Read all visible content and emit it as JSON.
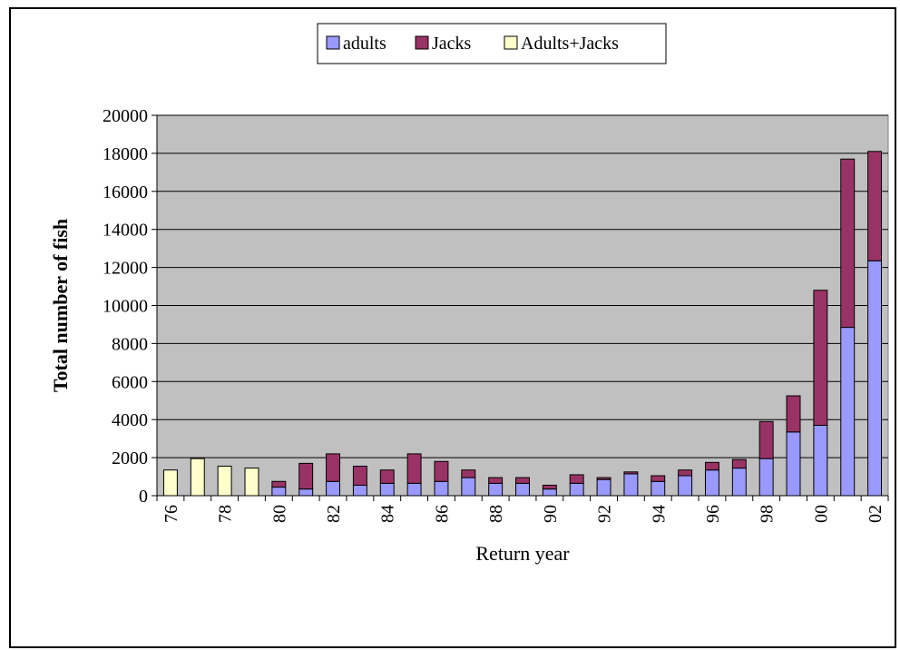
{
  "chart_data": {
    "type": "bar",
    "stacked": true,
    "xlabel": "Return year",
    "ylabel": "Total number of fish",
    "ylim": [
      0,
      20000
    ],
    "yticks": [
      0,
      2000,
      4000,
      6000,
      8000,
      10000,
      12000,
      14000,
      16000,
      18000,
      20000
    ],
    "legend_position": "top-center",
    "grid": true,
    "background_color": "#c0c0c0",
    "categories": [
      "76",
      "77",
      "78",
      "79",
      "80",
      "81",
      "82",
      "83",
      "84",
      "85",
      "86",
      "87",
      "88",
      "89",
      "90",
      "91",
      "92",
      "93",
      "94",
      "95",
      "96",
      "97",
      "98",
      "99",
      "00",
      "01",
      "02"
    ],
    "tick_labels": [
      "76",
      "",
      "78",
      "",
      "80",
      "",
      "82",
      "",
      "84",
      "",
      "86",
      "",
      "88",
      "",
      "90",
      "",
      "92",
      "",
      "94",
      "",
      "96",
      "",
      "98",
      "",
      "00",
      "",
      "02"
    ],
    "series": [
      {
        "name": "adults",
        "color": "#9999ff",
        "values": [
          0,
          0,
          0,
          0,
          450,
          350,
          750,
          550,
          650,
          650,
          750,
          950,
          650,
          650,
          350,
          650,
          850,
          1150,
          750,
          1050,
          1350,
          1450,
          1950,
          3350,
          3700,
          8850,
          12350
        ]
      },
      {
        "name": "Jacks",
        "color": "#993366",
        "values": [
          0,
          0,
          0,
          0,
          300,
          1350,
          1450,
          1000,
          700,
          1550,
          1050,
          400,
          300,
          300,
          200,
          450,
          100,
          100,
          300,
          300,
          400,
          450,
          1950,
          1900,
          7100,
          8850,
          5750
        ]
      },
      {
        "name": "Adults+Jacks",
        "color": "#ffffcc",
        "values": [
          1350,
          1950,
          1550,
          1450,
          0,
          0,
          0,
          0,
          0,
          0,
          0,
          0,
          0,
          0,
          0,
          0,
          0,
          0,
          0,
          0,
          0,
          0,
          0,
          0,
          0,
          0,
          0
        ]
      }
    ]
  }
}
